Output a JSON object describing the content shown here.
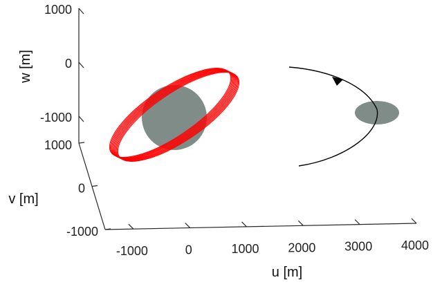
{
  "chart_data": {
    "type": "line",
    "subtype": "3d-trajectory",
    "xlabel": "u [m]",
    "ylabel": "v [m]",
    "zlabel": "w [m]",
    "x_ticks": [
      "-1000",
      "0",
      "1000",
      "2000",
      "3000",
      "4000"
    ],
    "y_ticks": [
      "1000",
      "0",
      "-1000"
    ],
    "z_ticks": [
      "1000",
      "0",
      "-1000"
    ],
    "xlim": [
      -1500,
      4000
    ],
    "ylim": [
      -1000,
      1000
    ],
    "zlim": [
      -1500,
      1000
    ],
    "grid": false,
    "series": [
      {
        "color": "#ff0000",
        "description": "relative orbit, multiple near-coincident elliptical loops around central body",
        "center": [
          0,
          0,
          -1000
        ],
        "loops": 12
      },
      {
        "color": "#000000",
        "description": "approach arc with direction arrow",
        "marker": "arrow"
      }
    ],
    "bodies": [
      {
        "color": "#7f8c87",
        "center": [
          0,
          0,
          -1000
        ]
      },
      {
        "color": "#7f8c87",
        "center": [
          3200,
          0,
          -1000
        ]
      }
    ]
  }
}
